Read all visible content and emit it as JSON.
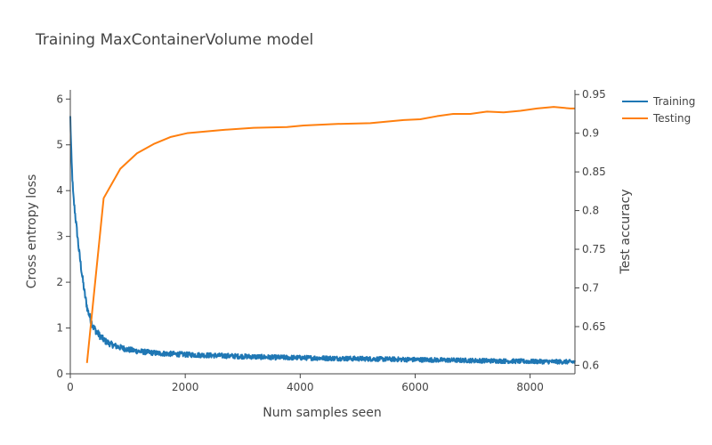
{
  "chart_data": {
    "type": "line",
    "title": "Training MaxContainerVolume model",
    "xlabel": "Num samples seen",
    "ylabel_left": "Cross entropy loss",
    "ylabel_right": "Test accuracy",
    "xlim": [
      0,
      8780
    ],
    "ylim_left": [
      0,
      6.2
    ],
    "ylim_right": [
      0.589,
      0.956
    ],
    "x_ticks": [
      {
        "value": 0,
        "label": "0"
      },
      {
        "value": 2000,
        "label": "2000"
      },
      {
        "value": 4000,
        "label": "4000"
      },
      {
        "value": 6000,
        "label": "6000"
      },
      {
        "value": 8000,
        "label": "8000"
      }
    ],
    "y_left_ticks": [
      {
        "value": 0,
        "label": "0"
      },
      {
        "value": 1,
        "label": "1"
      },
      {
        "value": 2,
        "label": "2"
      },
      {
        "value": 3,
        "label": "3"
      },
      {
        "value": 4,
        "label": "4"
      },
      {
        "value": 5,
        "label": "5"
      },
      {
        "value": 6,
        "label": "6"
      }
    ],
    "y_right_ticks": [
      {
        "value": 0.6,
        "label": "0.6"
      },
      {
        "value": 0.65,
        "label": "0.65"
      },
      {
        "value": 0.7,
        "label": "0.7"
      },
      {
        "value": 0.75,
        "label": "0.75"
      },
      {
        "value": 0.8,
        "label": "0.8"
      },
      {
        "value": 0.85,
        "label": "0.85"
      },
      {
        "value": 0.9,
        "label": "0.9"
      },
      {
        "value": 0.95,
        "label": "0.95"
      }
    ],
    "grid": false,
    "legend_position": "top-right",
    "series": [
      {
        "name": "Training",
        "axis": "left",
        "color": "#1f77b4",
        "noisy": true,
        "x": [
          0,
          20,
          50,
          100,
          150,
          200,
          250,
          300,
          350,
          400,
          500,
          600,
          700,
          800,
          1000,
          1200,
          1500,
          2000,
          2500,
          3000,
          3500,
          4000,
          5000,
          6000,
          7000,
          8000,
          8780
        ],
        "y": [
          5.6,
          4.7,
          3.9,
          3.3,
          2.7,
          2.2,
          1.75,
          1.4,
          1.2,
          1.02,
          0.85,
          0.72,
          0.65,
          0.6,
          0.53,
          0.49,
          0.45,
          0.42,
          0.4,
          0.38,
          0.36,
          0.35,
          0.33,
          0.31,
          0.29,
          0.27,
          0.26
        ]
      },
      {
        "name": "Testing",
        "axis": "right",
        "color": "#ff7f0e",
        "noisy": false,
        "x": [
          290,
          580,
          870,
          1160,
          1450,
          1740,
          2030,
          2610,
          3190,
          3770,
          4060,
          4350,
          4640,
          5220,
          5800,
          6090,
          6380,
          6670,
          6960,
          7250,
          7540,
          7830,
          8120,
          8410,
          8700,
          8780
        ],
        "y": [
          0.603,
          0.816,
          0.854,
          0.874,
          0.886,
          0.895,
          0.9,
          0.904,
          0.907,
          0.908,
          0.91,
          0.911,
          0.912,
          0.913,
          0.917,
          0.918,
          0.922,
          0.925,
          0.925,
          0.928,
          0.927,
          0.929,
          0.932,
          0.934,
          0.932,
          0.932
        ]
      }
    ]
  }
}
